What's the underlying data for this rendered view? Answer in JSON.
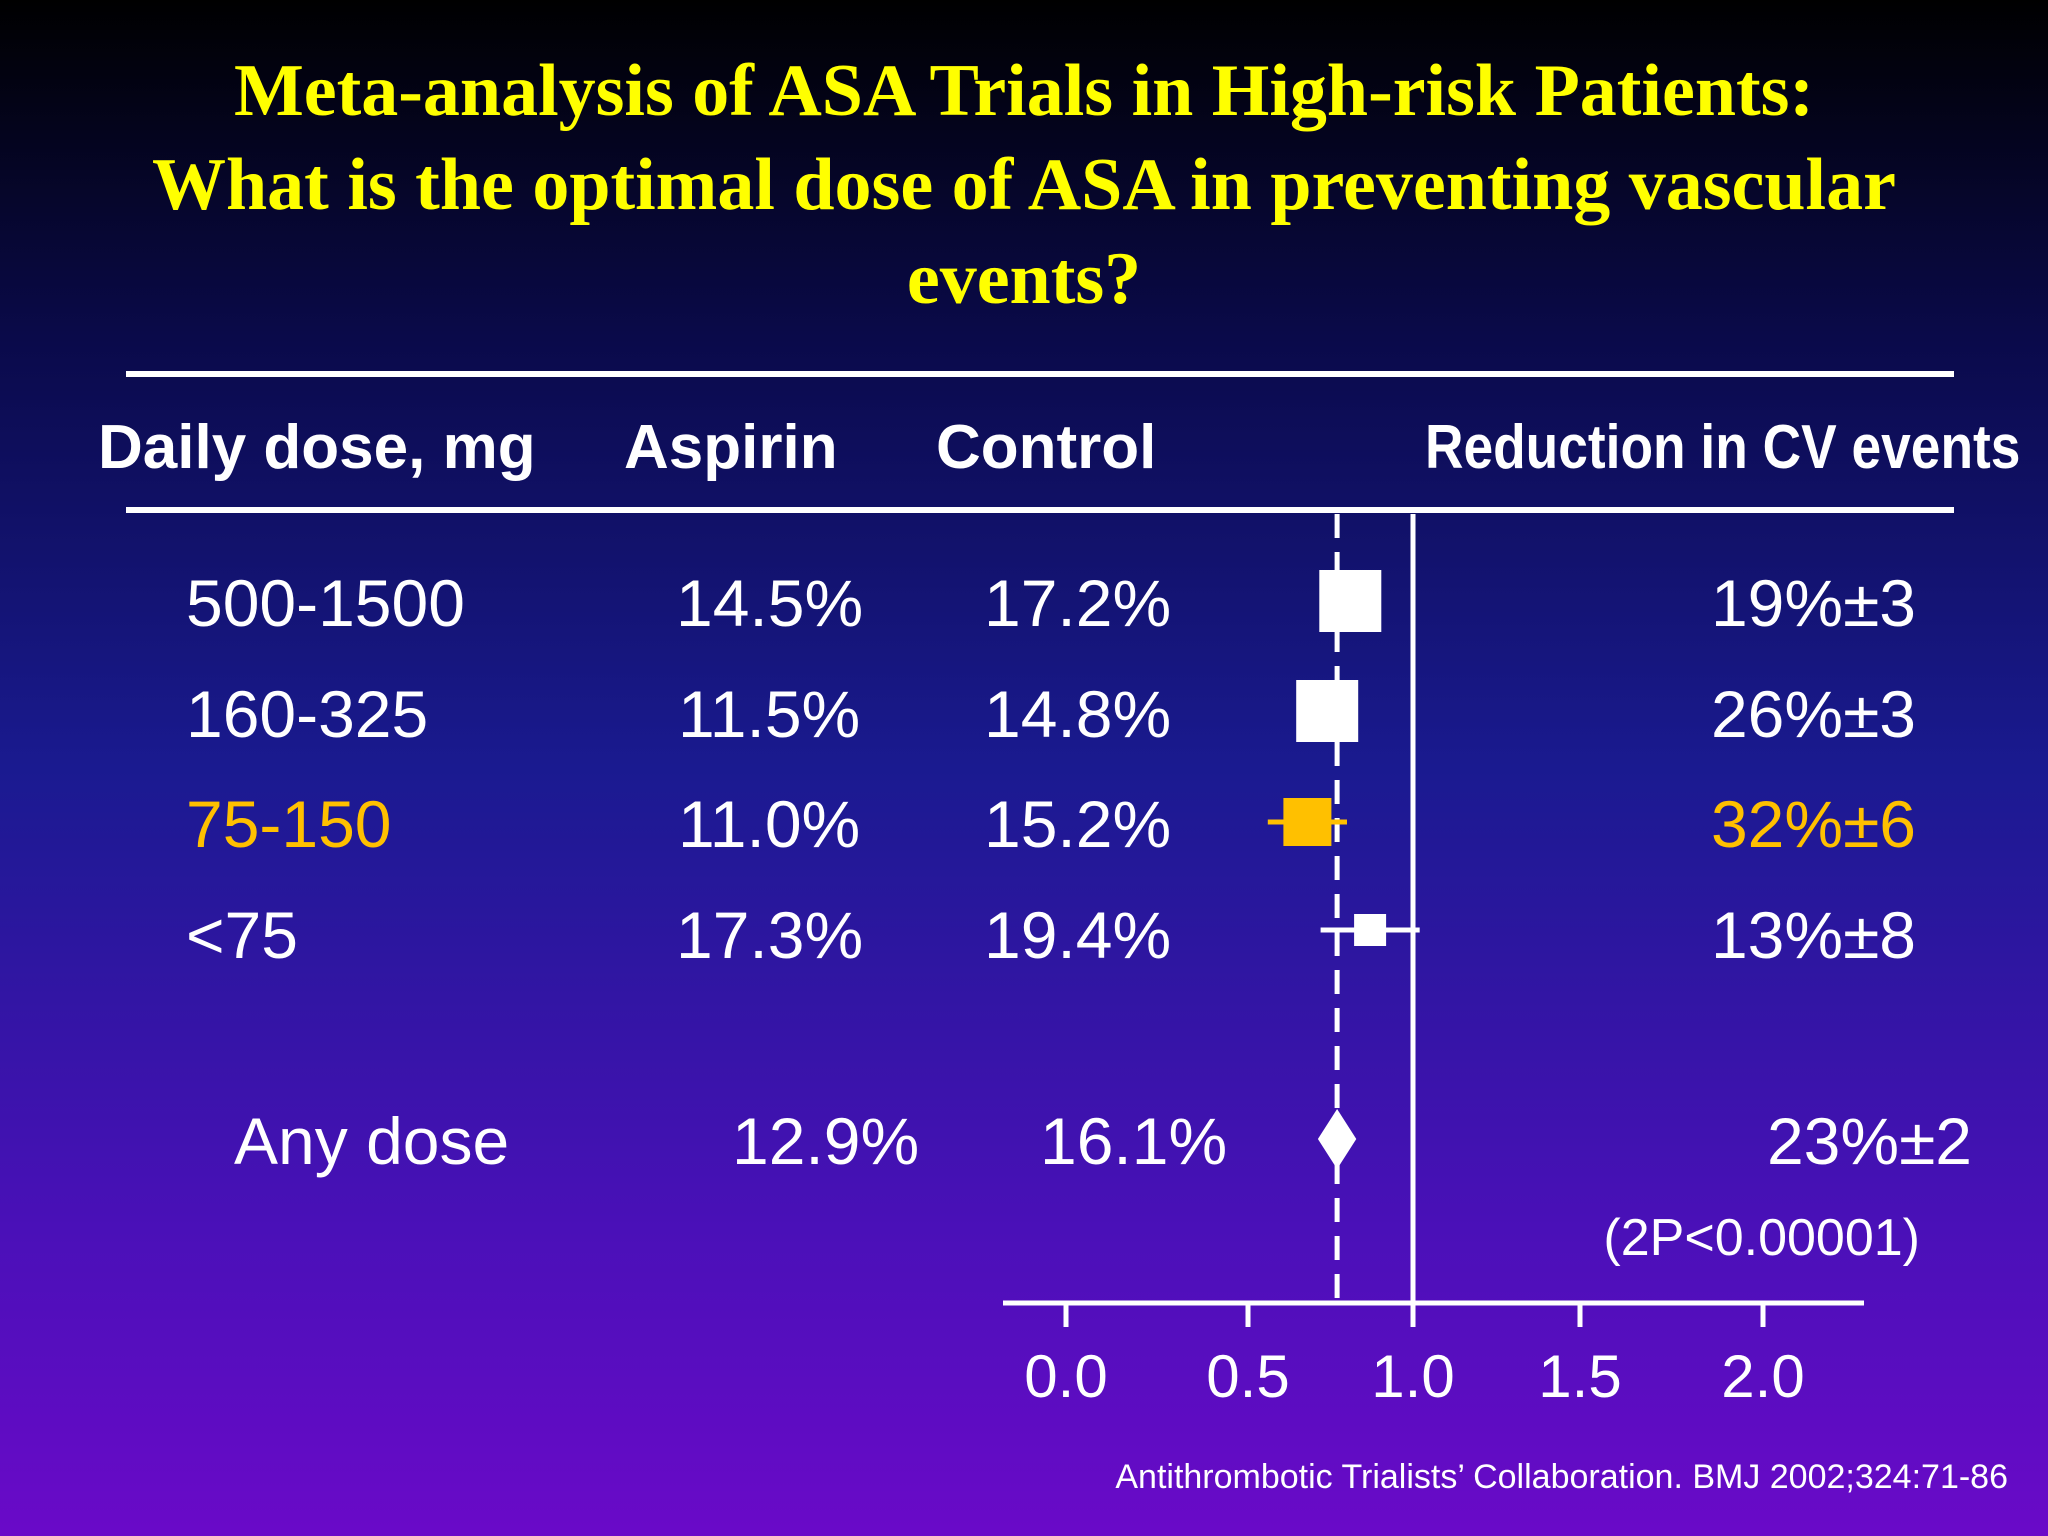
{
  "title": {
    "line1": "Meta-analysis of ASA Trials in High-risk Patients:",
    "line2": "What is the optimal dose of ASA in preventing vascular",
    "line3": "events?"
  },
  "headers": {
    "dose": "Daily dose, mg",
    "aspirin": "Aspirin",
    "control": "Control",
    "reduction": "Reduction in CV events"
  },
  "rows": [
    {
      "dose": "500-1500",
      "aspirin": "14.5%",
      "control": "17.2%",
      "reduction": "19%±3",
      "highlight": false
    },
    {
      "dose": "160-325",
      "aspirin": "11.5%",
      "control": "14.8%",
      "reduction": "26%±3",
      "highlight": false
    },
    {
      "dose": "75-150",
      "aspirin": "11.0%",
      "control": "15.2%",
      "reduction": "32%±6",
      "highlight": true
    },
    {
      "dose": "<75",
      "aspirin": "17.3%",
      "control": "19.4%",
      "reduction": "13%±8",
      "highlight": false
    }
  ],
  "summary": {
    "dose": "Any dose",
    "aspirin": "12.9%",
    "control": "16.1%",
    "reduction": "23%±2",
    "p_value": "(2P<0.00001)"
  },
  "colors": {
    "title": "#ffff00",
    "highlight": "#ffc000",
    "text": "#ffffff"
  },
  "chart_data": {
    "type": "forest",
    "x_ticks": [
      "0.0",
      "0.5",
      "1.0",
      "1.5",
      "2.0"
    ],
    "reference_line": 1.0,
    "pooled_line": 0.77,
    "rows": [
      {
        "label": "500-1500",
        "estimate": 0.81,
        "ci": [
          0.76,
          0.86
        ],
        "weight": "large",
        "highlight": false
      },
      {
        "label": "160-325",
        "estimate": 0.74,
        "ci": [
          0.69,
          0.79
        ],
        "weight": "large",
        "highlight": false
      },
      {
        "label": "75-150",
        "estimate": 0.68,
        "ci": [
          0.56,
          0.8
        ],
        "weight": "medium",
        "highlight": true
      },
      {
        "label": "<75",
        "estimate": 0.87,
        "ci": [
          0.72,
          1.02
        ],
        "weight": "small",
        "highlight": false
      }
    ],
    "summary": {
      "label": "Any dose",
      "estimate": 0.77,
      "ci": [
        0.73,
        0.81
      ]
    }
  },
  "citation": "Antithrombotic Trialists’ Collaboration. BMJ 2002;324:71-86"
}
